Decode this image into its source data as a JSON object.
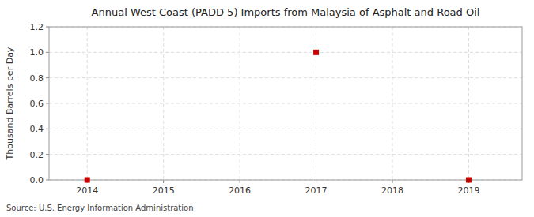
{
  "chart_data": {
    "type": "scatter",
    "title": "Annual West Coast (PADD 5) Imports from Malaysia of Asphalt and Road Oil",
    "ylabel": "Thousand Barrels per Day",
    "annotations": [
      "Source: U.S. Energy Information Administration"
    ],
    "x": [
      2014,
      2017,
      2019
    ],
    "values": [
      0.0,
      1.0,
      0.0
    ],
    "color": "#cc0000",
    "marker": "square",
    "xlim": [
      2013.5,
      2019.7
    ],
    "ylim": [
      0.0,
      1.2
    ],
    "xticks": [
      2014,
      2015,
      2016,
      2017,
      2018,
      2019
    ],
    "yticks": [
      {
        "value": 0.0,
        "label": "0.0"
      },
      0.2,
      0.4,
      0.6,
      0.8,
      {
        "value": 1.0,
        "label": "1.0"
      },
      1.2
    ],
    "grid": true
  }
}
